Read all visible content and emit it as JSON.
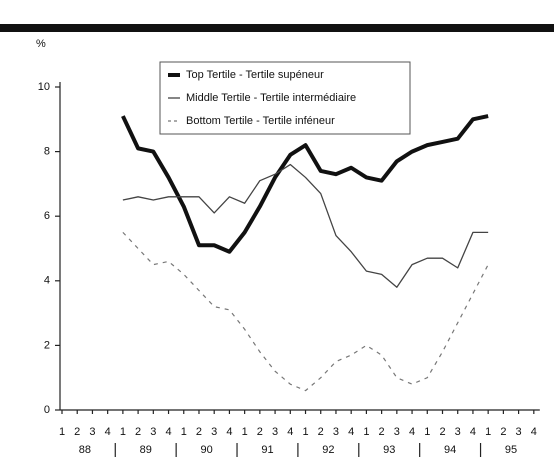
{
  "chart_data": {
    "type": "line",
    "y_label": "%",
    "categories": [
      "1",
      "2",
      "3",
      "4",
      "1",
      "2",
      "3",
      "4",
      "1",
      "2",
      "3",
      "4",
      "1",
      "2",
      "3",
      "4",
      "1",
      "2",
      "3",
      "4",
      "1",
      "2",
      "3",
      "4",
      "1",
      "2",
      "3",
      "4",
      "1",
      "2",
      "3",
      "4"
    ],
    "year_labels": [
      "88",
      "89",
      "90",
      "91",
      "92",
      "93",
      "94",
      "95"
    ],
    "series": [
      {
        "name": "Top Tertile - Tertile supéneur",
        "color": "#111111",
        "style": "thick",
        "values": [
          null,
          null,
          null,
          null,
          9.1,
          8.1,
          8.0,
          7.2,
          6.3,
          5.1,
          5.1,
          4.9,
          5.5,
          6.3,
          7.2,
          7.9,
          8.2,
          7.4,
          7.3,
          7.5,
          7.2,
          7.1,
          7.7,
          8.0,
          8.2,
          8.3,
          8.4,
          9.0,
          9.1,
          null,
          null,
          null
        ]
      },
      {
        "name": "Middle Tertile - Tertile intermédiaire",
        "color": "#444444",
        "style": "thin",
        "values": [
          null,
          null,
          null,
          null,
          6.5,
          6.6,
          6.5,
          6.6,
          6.6,
          6.6,
          6.1,
          6.6,
          6.4,
          7.1,
          7.3,
          7.6,
          7.2,
          6.7,
          5.4,
          4.9,
          4.3,
          4.2,
          3.8,
          4.5,
          4.7,
          4.7,
          4.4,
          5.5,
          5.5,
          null,
          null,
          null
        ]
      },
      {
        "name": "Bottom Tertile - Tertile inféneur",
        "color": "#777777",
        "style": "dashed",
        "values": [
          null,
          null,
          null,
          null,
          5.5,
          5.0,
          4.5,
          4.6,
          4.2,
          3.7,
          3.2,
          3.1,
          2.5,
          1.8,
          1.2,
          0.8,
          0.6,
          1.0,
          1.5,
          1.7,
          2.0,
          1.7,
          1.0,
          0.8,
          1.0,
          1.8,
          2.7,
          3.6,
          4.5,
          null,
          null,
          null
        ]
      }
    ],
    "ylim": [
      0,
      10
    ],
    "yticks": [
      0,
      2,
      4,
      6,
      8,
      10
    ]
  }
}
